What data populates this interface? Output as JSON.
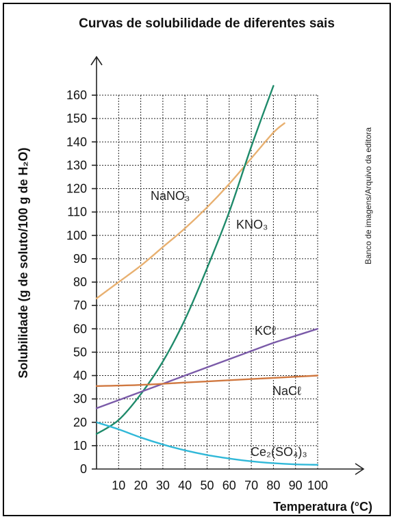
{
  "chart_data": {
    "type": "line",
    "title": "Curvas de solubilidade de diferentes sais",
    "xlabel": "Temperatura (°C)",
    "ylabel": "Solubilidade (g de soluto/100 g de H₂O)",
    "credit": "Banco de imagens/Arquivo da editora",
    "xlim": [
      0,
      100
    ],
    "ylim": [
      0,
      160
    ],
    "x_ticks": [
      10,
      20,
      30,
      40,
      50,
      60,
      70,
      80,
      90,
      100
    ],
    "y_ticks": [
      0,
      10,
      20,
      30,
      40,
      50,
      60,
      70,
      80,
      90,
      100,
      110,
      120,
      130,
      140,
      150,
      160
    ],
    "grid": true,
    "series": [
      {
        "name": "NaNO₃",
        "color": "#e8b070",
        "x": [
          0,
          10,
          20,
          30,
          40,
          50,
          60,
          70,
          80,
          85
        ],
        "y": [
          73,
          80,
          87,
          95,
          103,
          112,
          122,
          133,
          144,
          148
        ]
      },
      {
        "name": "KNO₃",
        "color": "#1e8a6a",
        "x": [
          0,
          10,
          20,
          30,
          40,
          50,
          60,
          70,
          80
        ],
        "y": [
          15,
          21,
          32,
          46,
          64,
          86,
          110,
          138,
          164
        ]
      },
      {
        "name": "KCℓ",
        "color": "#7a5aa8",
        "x": [
          0,
          10,
          20,
          30,
          40,
          50,
          60,
          70,
          80,
          90,
          100
        ],
        "y": [
          26,
          29.5,
          33,
          36.5,
          40,
          43.5,
          47,
          50.5,
          54,
          57,
          60
        ]
      },
      {
        "name": "NaCℓ",
        "color": "#d07840",
        "x": [
          0,
          20,
          40,
          60,
          80,
          100
        ],
        "y": [
          35.5,
          36,
          37,
          38,
          39,
          40
        ]
      },
      {
        "name": "Ce₂(SO₄)₃",
        "color": "#30b8d8",
        "x": [
          0,
          10,
          20,
          30,
          40,
          50,
          60,
          70,
          80,
          90,
          100
        ],
        "y": [
          20,
          17,
          13.5,
          10.5,
          8,
          6,
          4.5,
          3.3,
          2.5,
          2,
          1.8
        ]
      }
    ]
  }
}
